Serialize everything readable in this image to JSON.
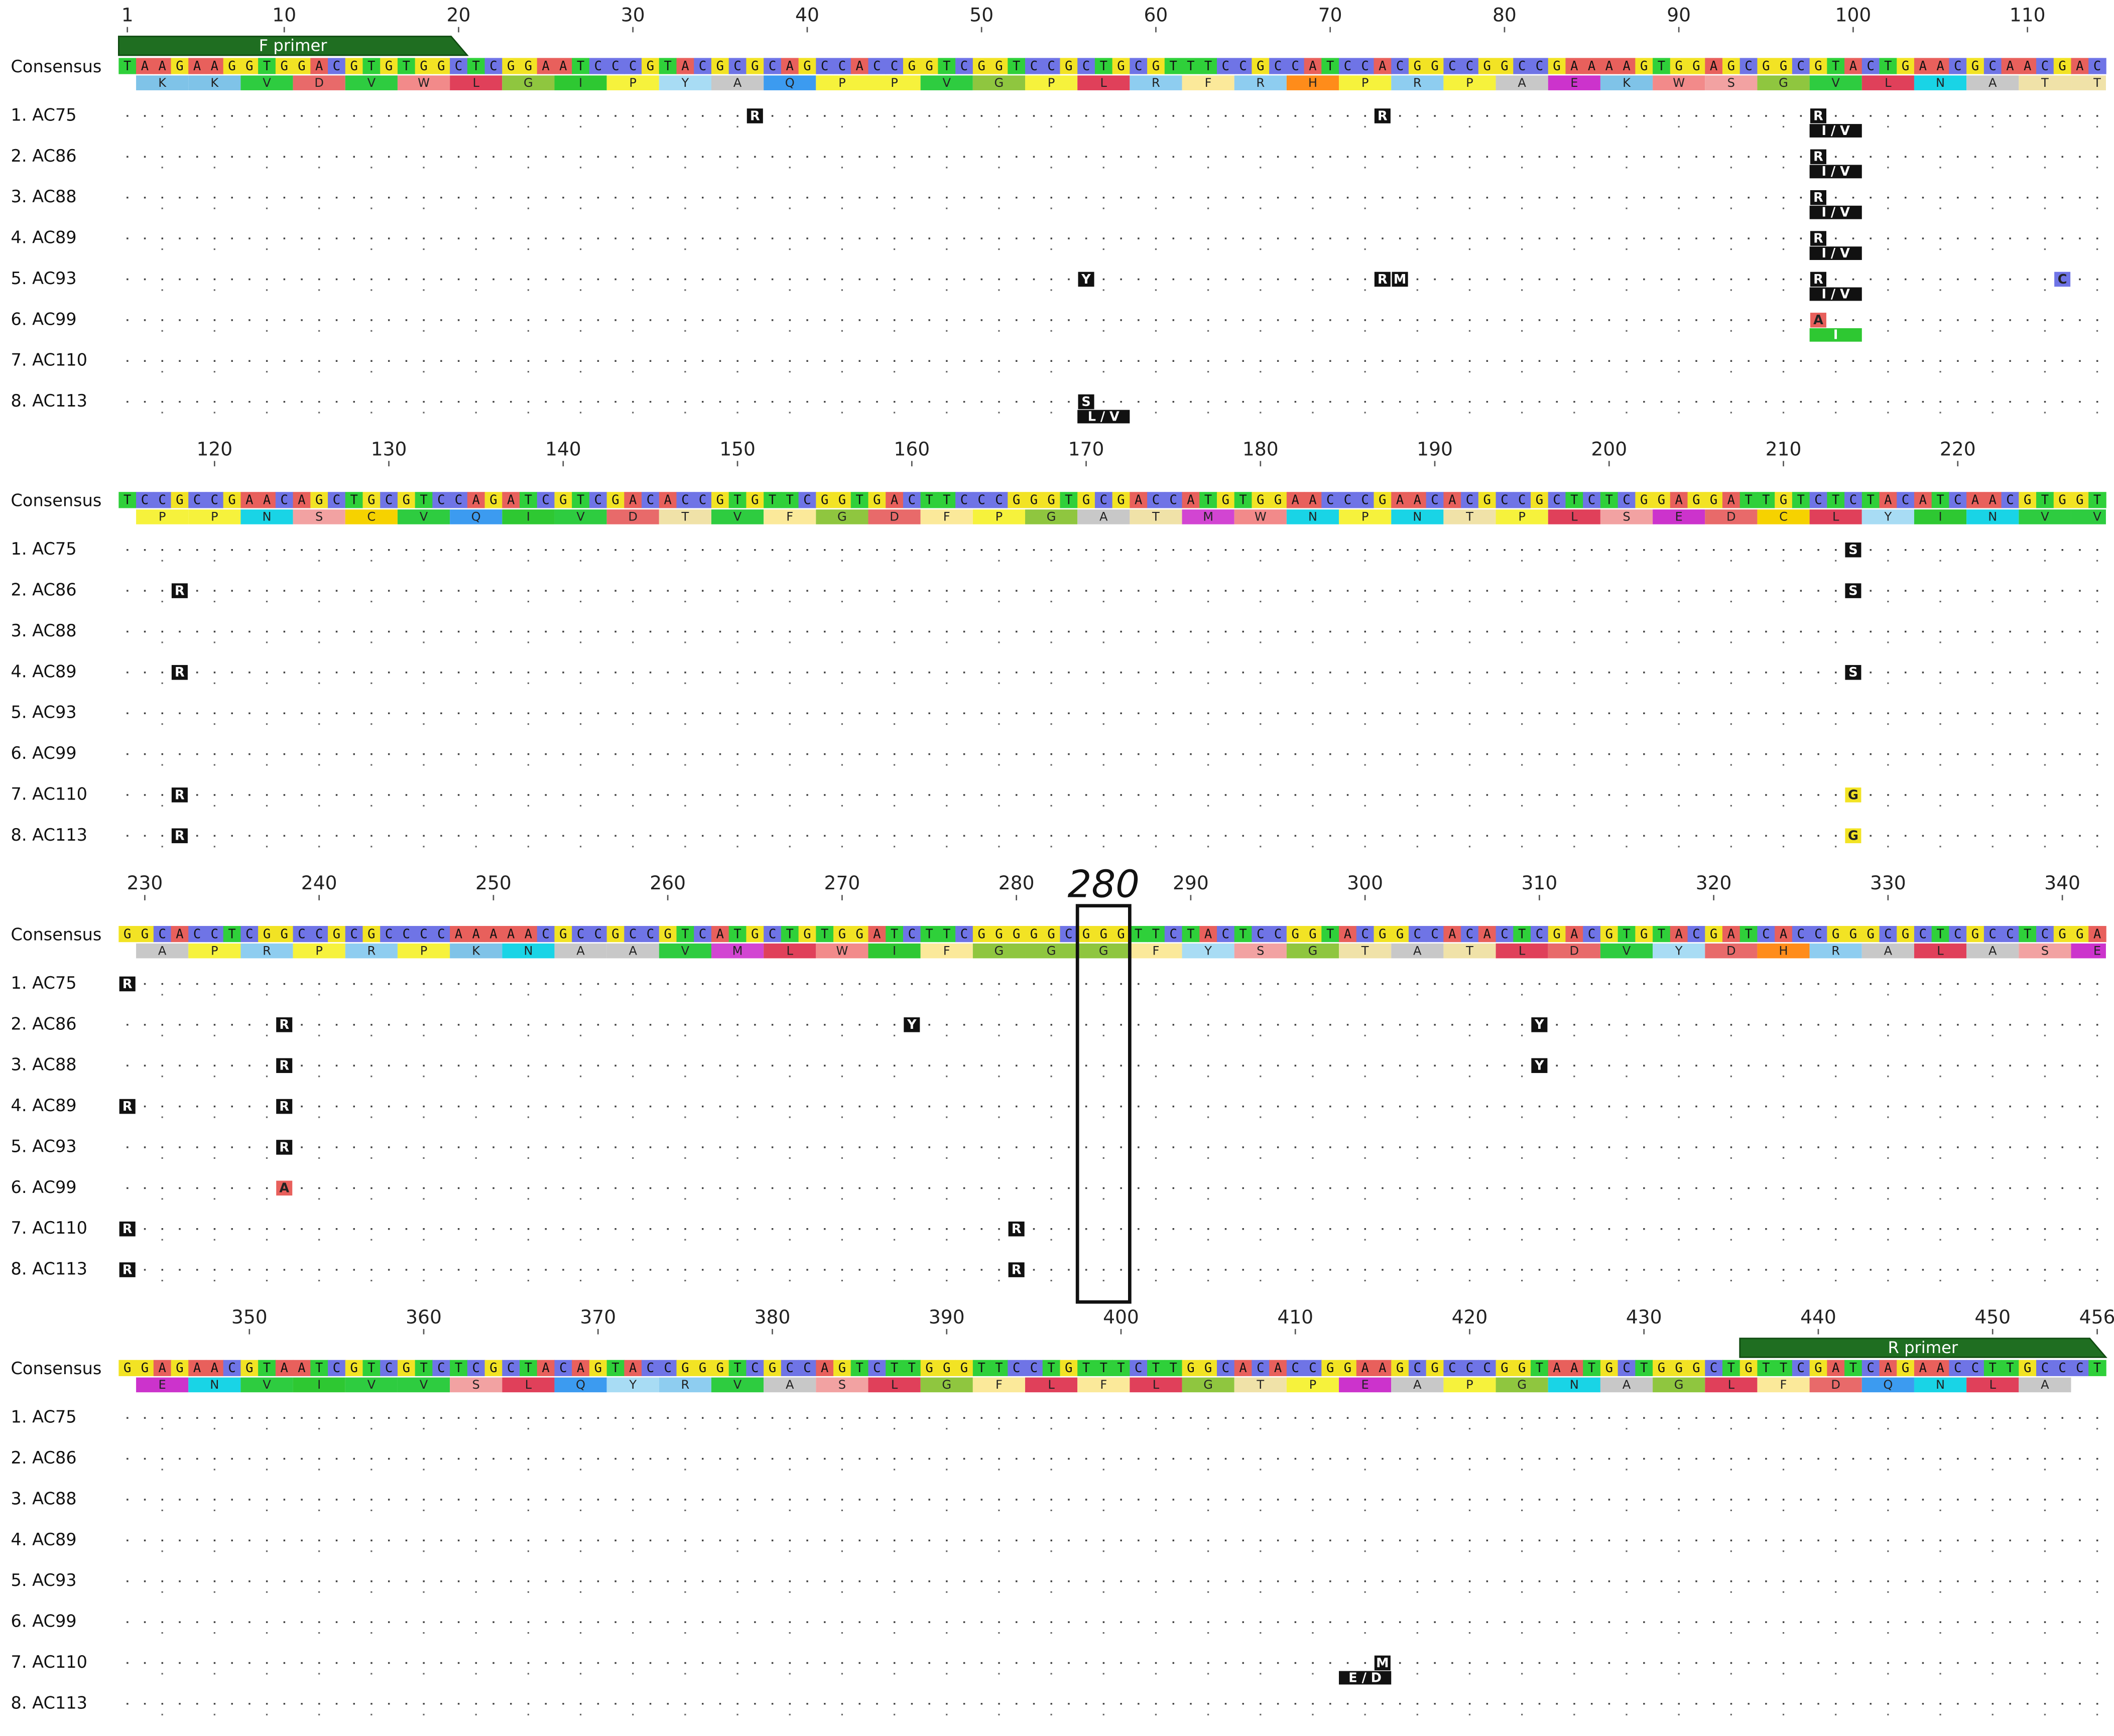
{
  "consensus_label": "Consensus",
  "sequences": [
    "1. AC75",
    "2. AC86",
    "3. AC88",
    "4. AC89",
    "5. AC93",
    "6. AC99",
    "7. AC110",
    "8. AC113"
  ],
  "base_colors": {
    "A": "#e8605c",
    "C": "#6f74e6",
    "G": "#f2e324",
    "T": "#2fd03a"
  },
  "aa_colors": {
    "A": "#c8c8c8",
    "R": "#8ecdf0",
    "N": "#19d4e6",
    "D": "#e86a6a",
    "C": "#f6d200",
    "Q": "#3c9bf0",
    "E": "#cc33cc",
    "G": "#8fc63f",
    "H": "#ff8c1a",
    "I": "#2ec832",
    "L": "#e0405a",
    "K": "#7fc3e8",
    "M": "#d245d2",
    "F": "#fbe99a",
    "P": "#f6f23c",
    "S": "#f2a2a2",
    "T": "#f0e2a8",
    "W": "#f28a8a",
    "Y": "#a8dcf4",
    "V": "#2ecc40"
  },
  "blocks": [
    {
      "start": 1,
      "ticks": [
        1,
        10,
        20,
        30,
        40,
        50,
        60,
        70,
        80,
        90,
        100,
        110
      ],
      "consensus": "TAAGAAGGTGGACGTGTGGCTCGGAATCCCGTACGCGCAGCCACCGGTCGGTCCGCTGCGTTTCCGCCATCCACGGCCGGCCGAAAAGTGGAGCGGCGTACTGAACGCAACGAC",
      "translation": "KKVDVWLGIPYAQPPVGPLRFRHPRPAEKWSGVLNATT"
    },
    {
      "start": 115,
      "ticks": [
        120,
        130,
        140,
        150,
        160,
        170,
        180,
        190,
        200,
        210,
        220
      ],
      "consensus": "TCCGCCGAACAGCTGCGTCCAGATCGTCGACACCGTGTTCGGTGACTTCCCGGGTGCGACCATGTGGAACCCGAACACGCCGCTCTCGGAGGATTGTCTCTACATCAACGTGGT",
      "translation": "PPNSCVQIVDTVFGDFPGATMWNPNTPLSEDCLYINVV"
    },
    {
      "start": 229,
      "ticks": [
        230,
        240,
        250,
        260,
        270,
        280,
        290,
        300,
        310,
        320,
        330,
        340
      ],
      "consensus": "GGCACCTCGGCCGCGCCCCAAAAACGCCGCCGTCATGCTGTGGATCTTCGGGGGCGGGTTCTACTCCGGTACGGCCACACTCGACGTGTACGATCACCGGGCGCTCGCCTCGGA",
      "translation": "APRPRPKNAAVMLWIFGGGFYSGTATLDVYDHRALASE"
    },
    {
      "start": 343,
      "ticks": [
        350,
        360,
        370,
        380,
        390,
        400,
        410,
        420,
        430,
        440,
        450,
        456
      ],
      "consensus": "GGAGAACGTAATCGTCGTCTCGCTACAGTACCGGGTCGCCAGTCTTGGGTTCCTGTTTCTTGGCACACCGGAAGCGCCCGGTAATGCTGGGCTGTTCGATCAGAACCTTGCCCT",
      "translation": "ENVIVVSLQYRVASLGFLFLGTPEAPGNAGLFDQNLA"
    }
  ],
  "primers": [
    {
      "label": "F primer",
      "start": 1,
      "end": 20
    },
    {
      "label": "R primer",
      "start": 436,
      "end": 456
    }
  ],
  "highlight": {
    "label": "280",
    "start": 284,
    "end": 286
  },
  "variants": [
    {
      "row": 0,
      "pos": 37,
      "base": "R"
    },
    {
      "row": 0,
      "pos": 73,
      "base": "R"
    },
    {
      "row": 0,
      "pos": 98,
      "base": "R",
      "aa": "I / V"
    },
    {
      "row": 1,
      "pos": 98,
      "base": "R",
      "aa": "I / V"
    },
    {
      "row": 2,
      "pos": 98,
      "base": "R",
      "aa": "I / V"
    },
    {
      "row": 3,
      "pos": 98,
      "base": "R",
      "aa": "I / V"
    },
    {
      "row": 4,
      "pos": 56,
      "base": "Y"
    },
    {
      "row": 4,
      "pos": 73,
      "base": "R"
    },
    {
      "row": 4,
      "pos": 74,
      "base": "M"
    },
    {
      "row": 4,
      "pos": 98,
      "base": "R",
      "aa": "I / V"
    },
    {
      "row": 4,
      "pos": 112,
      "base": "C"
    },
    {
      "row": 5,
      "pos": 98,
      "base": "A",
      "aa": "I"
    },
    {
      "row": 7,
      "pos": 56,
      "base": "S",
      "aa": "L / V"
    },
    {
      "row": 0,
      "pos": 214,
      "base": "S"
    },
    {
      "row": 1,
      "pos": 118,
      "base": "R"
    },
    {
      "row": 1,
      "pos": 214,
      "base": "S"
    },
    {
      "row": 3,
      "pos": 118,
      "base": "R"
    },
    {
      "row": 3,
      "pos": 214,
      "base": "S"
    },
    {
      "row": 6,
      "pos": 118,
      "base": "R"
    },
    {
      "row": 6,
      "pos": 214,
      "base": "G"
    },
    {
      "row": 7,
      "pos": 118,
      "base": "R"
    },
    {
      "row": 7,
      "pos": 214,
      "base": "G"
    },
    {
      "row": 0,
      "pos": 229,
      "base": "R"
    },
    {
      "row": 1,
      "pos": 238,
      "base": "R"
    },
    {
      "row": 1,
      "pos": 274,
      "base": "Y"
    },
    {
      "row": 1,
      "pos": 310,
      "base": "Y"
    },
    {
      "row": 2,
      "pos": 238,
      "base": "R"
    },
    {
      "row": 2,
      "pos": 310,
      "base": "Y"
    },
    {
      "row": 3,
      "pos": 229,
      "base": "R"
    },
    {
      "row": 3,
      "pos": 238,
      "base": "R"
    },
    {
      "row": 4,
      "pos": 238,
      "base": "R"
    },
    {
      "row": 5,
      "pos": 238,
      "base": "A"
    },
    {
      "row": 6,
      "pos": 229,
      "base": "R"
    },
    {
      "row": 6,
      "pos": 280,
      "base": "R"
    },
    {
      "row": 7,
      "pos": 229,
      "base": "R"
    },
    {
      "row": 7,
      "pos": 280,
      "base": "R"
    },
    {
      "row": 6,
      "pos": 415,
      "base": "M",
      "aa": "E / D"
    }
  ]
}
